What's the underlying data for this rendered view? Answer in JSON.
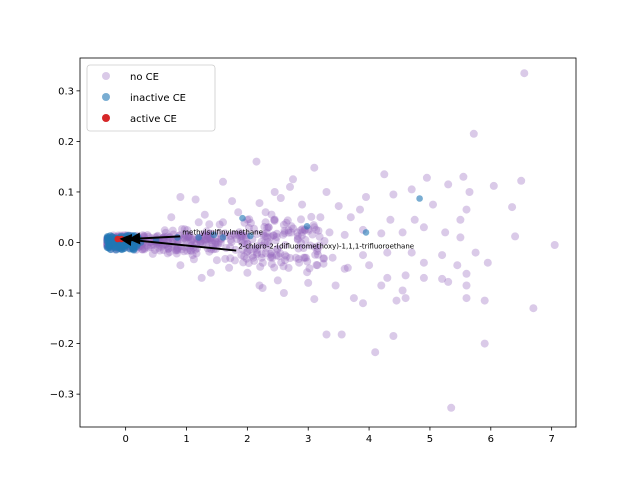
{
  "chart_data": {
    "type": "scatter",
    "xlim": [
      -0.75,
      7.4
    ],
    "ylim": [
      -0.365,
      0.365
    ],
    "x_ticks": [
      0,
      1,
      2,
      3,
      4,
      5,
      6,
      7
    ],
    "y_ticks": [
      -0.3,
      -0.2,
      -0.1,
      0.0,
      0.1,
      0.2,
      0.3
    ],
    "x_tick_labels": [
      "0",
      "1",
      "2",
      "3",
      "4",
      "5",
      "6",
      "7"
    ],
    "y_tick_labels": [
      "−0.3",
      "−0.2",
      "−0.1",
      "0.0",
      "0.1",
      "0.2",
      "0.3"
    ],
    "grid": false,
    "legend_position": "top-left",
    "series": [
      {
        "name": "no CE",
        "color": "#9467bd",
        "opacity": 0.35,
        "points": [
          [
            6.55,
            0.335
          ],
          [
            5.72,
            0.215
          ],
          [
            2.15,
            0.16
          ],
          [
            1.6,
            0.12
          ],
          [
            3.1,
            0.148
          ],
          [
            4.25,
            0.135
          ],
          [
            4.95,
            0.128
          ],
          [
            5.55,
            0.13
          ],
          [
            6.05,
            0.112
          ],
          [
            6.5,
            0.122
          ],
          [
            2.75,
            0.125
          ],
          [
            2.7,
            0.11
          ],
          [
            2.45,
            0.1
          ],
          [
            3.3,
            0.1
          ],
          [
            3.95,
            0.09
          ],
          [
            4.4,
            0.095
          ],
          [
            4.7,
            0.105
          ],
          [
            5.3,
            0.115
          ],
          [
            5.65,
            0.1
          ],
          [
            6.35,
            0.07
          ],
          [
            0.9,
            0.09
          ],
          [
            1.15,
            0.085
          ],
          [
            1.75,
            0.082
          ],
          [
            2.2,
            0.078
          ],
          [
            2.55,
            0.088
          ],
          [
            2.9,
            0.075
          ],
          [
            3.5,
            0.072
          ],
          [
            3.85,
            0.065
          ],
          [
            5.05,
            0.075
          ],
          [
            5.6,
            0.065
          ],
          [
            5.5,
            0.045
          ],
          [
            4.35,
            0.045
          ],
          [
            4.75,
            0.045
          ],
          [
            3.7,
            0.05
          ],
          [
            3.2,
            0.05
          ],
          [
            2.3,
            0.06
          ],
          [
            1.85,
            0.06
          ],
          [
            1.3,
            0.055
          ],
          [
            0.75,
            0.05
          ],
          [
            6.4,
            0.012
          ],
          [
            7.05,
            -0.005
          ],
          [
            5.95,
            -0.04
          ],
          [
            5.45,
            -0.045
          ],
          [
            4.9,
            -0.04
          ],
          [
            5.6,
            -0.062
          ],
          [
            5.2,
            -0.072
          ],
          [
            5.3,
            -0.078
          ],
          [
            5.6,
            -0.085
          ],
          [
            5.6,
            -0.11
          ],
          [
            4.55,
            -0.095
          ],
          [
            4.6,
            -0.11
          ],
          [
            3.75,
            -0.11
          ],
          [
            4.45,
            -0.115
          ],
          [
            5.9,
            -0.115
          ],
          [
            6.7,
            -0.13
          ],
          [
            3.9,
            -0.12
          ],
          [
            3.1,
            -0.112
          ],
          [
            2.6,
            -0.1
          ],
          [
            2.5,
            -0.075
          ],
          [
            2.2,
            -0.085
          ],
          [
            2.25,
            -0.09
          ],
          [
            3.0,
            -0.08
          ],
          [
            3.45,
            -0.085
          ],
          [
            4.2,
            -0.085
          ],
          [
            3.3,
            -0.182
          ],
          [
            3.55,
            -0.182
          ],
          [
            4.4,
            -0.185
          ],
          [
            5.9,
            -0.2
          ],
          [
            4.1,
            -0.217
          ],
          [
            5.35,
            -0.327
          ],
          [
            3.65,
            -0.05
          ],
          [
            3.6,
            -0.052
          ],
          [
            4.0,
            -0.045
          ],
          [
            3.15,
            -0.045
          ],
          [
            2.85,
            -0.04
          ],
          [
            2.0,
            -0.06
          ],
          [
            1.7,
            -0.05
          ],
          [
            1.4,
            -0.06
          ],
          [
            1.25,
            -0.07
          ],
          [
            0.9,
            -0.045
          ],
          [
            4.6,
            -0.065
          ],
          [
            4.9,
            -0.07
          ],
          [
            4.3,
            -0.07
          ],
          [
            2.8,
            -0.03
          ],
          [
            3.4,
            -0.03
          ],
          [
            3.9,
            -0.025
          ],
          [
            4.3,
            -0.02
          ],
          [
            4.7,
            -0.02
          ],
          [
            5.2,
            -0.025
          ],
          [
            5.75,
            -0.02
          ],
          [
            3.35,
            0.02
          ],
          [
            3.6,
            0.015
          ],
          [
            3.9,
            0.025
          ],
          [
            4.2,
            0.018
          ],
          [
            4.55,
            0.02
          ],
          [
            4.9,
            0.03
          ],
          [
            5.25,
            0.02
          ],
          [
            5.5,
            0.01
          ],
          [
            3.1,
            0.03
          ],
          [
            2.9,
            0.02
          ],
          [
            2.6,
            0.035
          ],
          [
            2.3,
            0.04
          ],
          [
            2.0,
            0.045
          ],
          [
            1.6,
            0.04
          ],
          [
            1.2,
            0.04
          ],
          [
            2.4,
            -0.02
          ],
          [
            2.1,
            -0.03
          ],
          [
            1.9,
            -0.025
          ],
          [
            1.5,
            -0.035
          ],
          [
            1.1,
            -0.025
          ]
        ]
      },
      {
        "name": "inactive CE",
        "color": "#1f77b4",
        "opacity": 0.6,
        "points": [
          [
            4.83,
            0.087
          ],
          [
            1.92,
            0.048
          ],
          [
            2.98,
            0.032
          ],
          [
            3.95,
            0.02
          ],
          [
            2.05,
            0.013
          ],
          [
            1.6,
            0.01
          ],
          [
            1.45,
            0.015
          ],
          [
            1.2,
            0.01
          ],
          [
            0.85,
            0.01
          ],
          [
            0.5,
            0.005
          ],
          [
            0.25,
            0.0
          ],
          [
            0.1,
            0.008
          ],
          [
            -0.05,
            0.003
          ],
          [
            -0.15,
            0.006
          ],
          [
            -0.2,
            -0.003
          ],
          [
            -0.25,
            0.004
          ],
          [
            -0.28,
            -0.002
          ],
          [
            -0.3,
            0.01
          ],
          [
            -0.27,
            -0.008
          ],
          [
            -0.22,
            0.012
          ],
          [
            -0.18,
            -0.01
          ],
          [
            -0.12,
            0.004
          ],
          [
            -0.08,
            -0.006
          ],
          [
            0.0,
            0.002
          ],
          [
            0.05,
            -0.004
          ],
          [
            0.15,
            0.004
          ]
        ]
      },
      {
        "name": "active CE",
        "color": "#d62728",
        "opacity": 1.0,
        "points": [
          [
            -0.13,
            0.007
          ],
          [
            -0.07,
            0.007
          ]
        ]
      }
    ],
    "annotations": [
      {
        "text": "methylsulfinylmethane",
        "text_x": 0.93,
        "text_y": 0.016,
        "target_x": 0.04,
        "target_y": 0.007
      },
      {
        "text": "2-chloro-2-(difluoromethoxy)-1,1,1-trifluoroethane",
        "text_x": 1.85,
        "text_y": -0.012,
        "target_x": -0.1,
        "target_y": 0.007
      }
    ]
  }
}
